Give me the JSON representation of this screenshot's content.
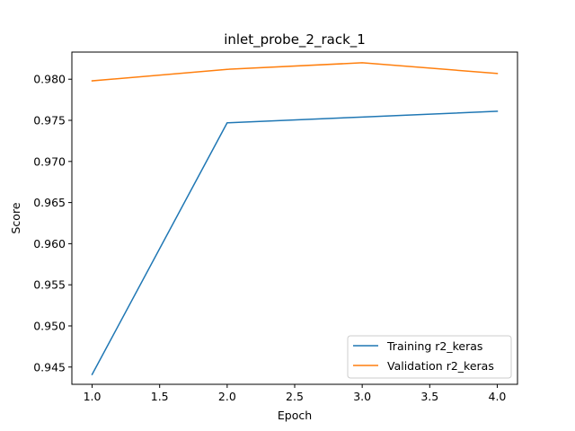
{
  "chart_data": {
    "type": "line",
    "title": "inlet_probe_2_rack_1",
    "xlabel": "Epoch",
    "ylabel": "Score",
    "x": [
      1.0,
      2.0,
      3.0,
      4.0
    ],
    "xlim": [
      0.85,
      4.15
    ],
    "ylim": [
      0.9429,
      0.9833
    ],
    "xticks": [
      1.0,
      1.5,
      2.0,
      2.5,
      3.0,
      3.5,
      4.0
    ],
    "xtick_labels": [
      "1.0",
      "1.5",
      "2.0",
      "2.5",
      "3.0",
      "3.5",
      "4.0"
    ],
    "yticks": [
      0.945,
      0.95,
      0.955,
      0.96,
      0.965,
      0.97,
      0.975,
      0.98
    ],
    "ytick_labels": [
      "0.945",
      "0.950",
      "0.955",
      "0.960",
      "0.965",
      "0.970",
      "0.975",
      "0.980"
    ],
    "grid": false,
    "legend_position": "lower-right",
    "series": [
      {
        "name": "Training r2_keras",
        "color": "#1f77b4",
        "values": [
          0.9441,
          0.9747,
          0.9754,
          0.9761
        ]
      },
      {
        "name": "Validation r2_keras",
        "color": "#ff7f0e",
        "values": [
          0.9798,
          0.9812,
          0.982,
          0.9807
        ]
      }
    ]
  }
}
